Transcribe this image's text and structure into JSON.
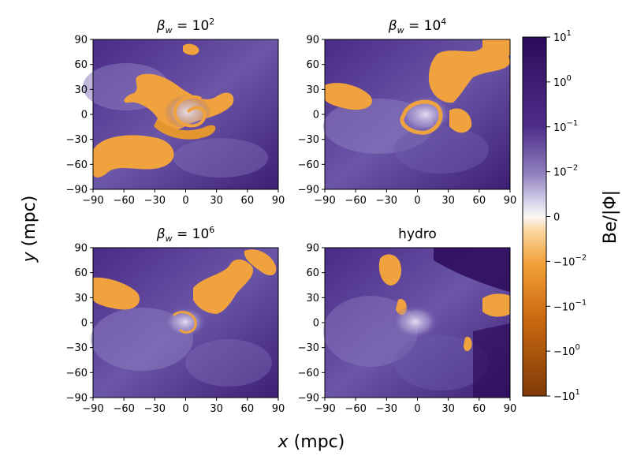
{
  "chart_data": {
    "type": "heatmap",
    "xlabel": "x (mpc)",
    "ylabel": "y (mpc)",
    "xlim": [
      -90,
      90
    ],
    "ylim": [
      -90,
      90
    ],
    "xticks": [
      "−90",
      "−60",
      "−30",
      "0",
      "30",
      "60",
      "90"
    ],
    "yticks": [
      "90",
      "60",
      "30",
      "0",
      "−30",
      "−60",
      "−90"
    ],
    "panels": [
      {
        "title": "β_w = 10^2",
        "title_base": "β",
        "title_sub": "w",
        "title_rest": " = 10",
        "title_exp": "2"
      },
      {
        "title": "β_w = 10^4",
        "title_base": "β",
        "title_sub": "w",
        "title_rest": " = 10",
        "title_exp": "4"
      },
      {
        "title": "β_w = 10^6",
        "title_base": "β",
        "title_sub": "w",
        "title_rest": " = 10",
        "title_exp": "6"
      },
      {
        "title": "hydro",
        "title_base": "hydro",
        "title_sub": "",
        "title_rest": "",
        "title_exp": ""
      }
    ],
    "colorbar": {
      "label": "Be/|Φ|",
      "scale": "symlog",
      "range": [
        -10,
        10
      ],
      "ticks": [
        {
          "label": "10",
          "exp": "1"
        },
        {
          "label": "10",
          "exp": "0"
        },
        {
          "label": "10",
          "exp": "−1"
        },
        {
          "label": "10",
          "exp": "−2"
        },
        {
          "label": "0",
          "exp": ""
        },
        {
          "label": "−10",
          "exp": "−2"
        },
        {
          "label": "−10",
          "exp": "−1"
        },
        {
          "label": "−10",
          "exp": "0"
        },
        {
          "label": "−10",
          "exp": "1"
        }
      ],
      "colors": {
        "positive_max": "#2d0a5a",
        "positive_mid": "#6a4fa6",
        "zero": "#fbf8f6",
        "negative_mid": "#f3a13a",
        "negative_max": "#7f3b08"
      }
    }
  }
}
